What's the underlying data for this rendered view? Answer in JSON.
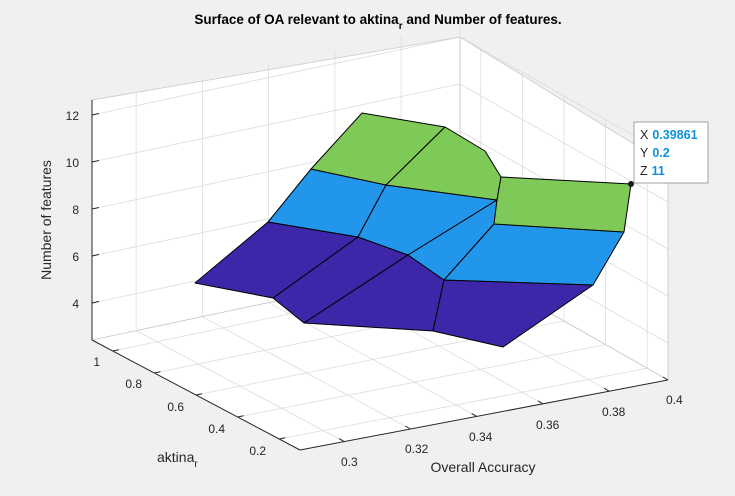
{
  "chart_data": {
    "type": "surface",
    "title_main": "Surface of OA relevant to aktina",
    "title_sub": "r",
    "title_rest": " and Number of features.",
    "xlabel": "Overall Accuracy",
    "ylabel_main": "aktina",
    "ylabel_sub": "r",
    "zlabel": "Number of features",
    "x_ticks": [
      "0.3",
      "0.32",
      "0.34",
      "0.36",
      "0.38",
      "0.4"
    ],
    "y_ticks": [
      "0.2",
      "0.4",
      "0.6",
      "0.8",
      "1"
    ],
    "z_ticks": [
      "4",
      "6",
      "8",
      "10",
      "12"
    ],
    "colors": {
      "low": "#3d26a8",
      "mid": "#2196ea",
      "high": "#7ec957",
      "axes_bg": "#ffffff",
      "figure_bg": "#f0f0f0"
    },
    "color_bands": [
      {
        "z_range": [
          3,
          6
        ],
        "color": "low"
      },
      {
        "z_range": [
          6,
          9
        ],
        "color": "mid"
      },
      {
        "z_range": [
          9,
          12
        ],
        "color": "high"
      }
    ]
  },
  "datatip": {
    "x_label": "X",
    "x_value": "0.39861",
    "y_label": "Y",
    "y_value": "0.2",
    "z_label": "Z",
    "z_value": "11"
  }
}
